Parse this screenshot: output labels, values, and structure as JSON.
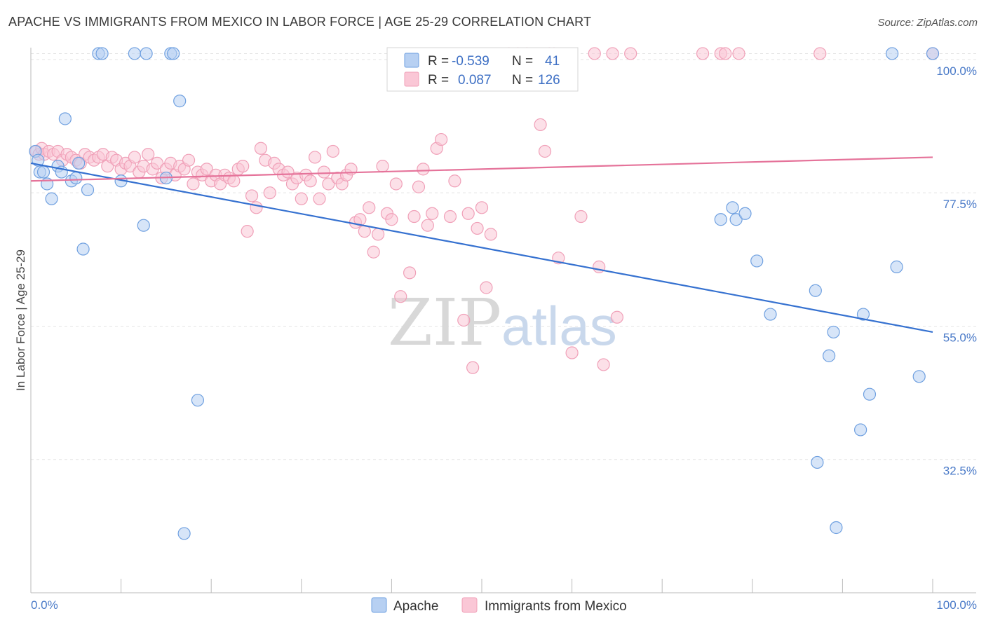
{
  "title": "APACHE VS IMMIGRANTS FROM MEXICO IN LABOR FORCE | AGE 25-29 CORRELATION CHART",
  "source": "Source: ZipAtlas.com",
  "watermark": {
    "zip": "ZIP",
    "atlas": "atlas"
  },
  "legend": {
    "r_label": "R =",
    "n_label": "N =",
    "rows": [
      {
        "r": "-0.539",
        "n": "41",
        "color": "#a8c8f0"
      },
      {
        "r": "0.087",
        "n": "126",
        "color": "#f7b8cc"
      }
    ]
  },
  "chart_data": {
    "type": "scatter",
    "ylabel": "In Labor Force | Age 25-29",
    "xlabel": "",
    "x_tick_labels": [
      "0.0%",
      "100.0%"
    ],
    "y_tick_labels": [
      "100.0%",
      "77.5%",
      "55.0%",
      "32.5%"
    ],
    "y_ticks": [
      100.0,
      77.5,
      55.0,
      32.5
    ],
    "xlim": [
      0,
      100
    ],
    "ylim": [
      10,
      102
    ],
    "grid": true,
    "legend_placement": "top-center",
    "series": [
      {
        "name": "Apache",
        "color": "#6fa0e0",
        "fill": "#b7d0f2",
        "line_color": "#3571d0",
        "trend": {
          "x0": 0,
          "y0": 82.5,
          "x1": 100,
          "y1": 54.0
        },
        "points": [
          [
            0.5,
            84.5
          ],
          [
            0.8,
            83.0
          ],
          [
            1.0,
            81.0
          ],
          [
            1.4,
            81.0
          ],
          [
            1.8,
            79.0
          ],
          [
            2.3,
            76.5
          ],
          [
            3.0,
            82.0
          ],
          [
            3.4,
            81.0
          ],
          [
            3.8,
            90.0
          ],
          [
            4.5,
            79.5
          ],
          [
            5.0,
            80.0
          ],
          [
            5.3,
            82.5
          ],
          [
            5.8,
            68.0
          ],
          [
            6.3,
            78.0
          ],
          [
            7.5,
            101.0
          ],
          [
            7.9,
            101.0
          ],
          [
            10.0,
            79.5
          ],
          [
            11.5,
            101.0
          ],
          [
            12.5,
            72.0
          ],
          [
            12.8,
            101.0
          ],
          [
            15.0,
            80.0
          ],
          [
            15.5,
            101.0
          ],
          [
            15.8,
            101.0
          ],
          [
            16.5,
            93.0
          ],
          [
            17.0,
            20.0
          ],
          [
            18.5,
            42.5
          ],
          [
            76.5,
            73.0
          ],
          [
            77.8,
            75.0
          ],
          [
            78.2,
            73.0
          ],
          [
            79.2,
            74.0
          ],
          [
            80.5,
            66.0
          ],
          [
            82.0,
            57.0
          ],
          [
            87.0,
            61.0
          ],
          [
            87.2,
            32.0
          ],
          [
            88.5,
            50.0
          ],
          [
            89.0,
            54.0
          ],
          [
            89.3,
            21.0
          ],
          [
            92.0,
            37.5
          ],
          [
            92.3,
            57.0
          ],
          [
            93.0,
            43.5
          ],
          [
            95.5,
            101.0
          ],
          [
            96.0,
            65.0
          ],
          [
            98.5,
            46.5
          ],
          [
            100.0,
            101.0
          ]
        ]
      },
      {
        "name": "Immigrants from Mexico",
        "color": "#f0a0b8",
        "fill": "#fac7d6",
        "line_color": "#e5739a",
        "trend": {
          "x0": 0,
          "y0": 79.5,
          "x1": 100,
          "y1": 83.5
        },
        "points": [
          [
            0.6,
            84.5
          ],
          [
            0.9,
            84.0
          ],
          [
            1.2,
            85.0
          ],
          [
            1.5,
            84.0
          ],
          [
            2.0,
            84.5
          ],
          [
            2.5,
            84.0
          ],
          [
            3.0,
            84.5
          ],
          [
            3.5,
            83.0
          ],
          [
            4.0,
            84.0
          ],
          [
            4.5,
            83.5
          ],
          [
            5.0,
            83.0
          ],
          [
            5.5,
            82.5
          ],
          [
            6.0,
            84.0
          ],
          [
            6.5,
            83.5
          ],
          [
            7.0,
            83.0
          ],
          [
            7.5,
            83.5
          ],
          [
            8.0,
            84.0
          ],
          [
            8.5,
            82.0
          ],
          [
            9.0,
            83.5
          ],
          [
            9.5,
            83.0
          ],
          [
            10.0,
            81.5
          ],
          [
            10.5,
            82.5
          ],
          [
            11.0,
            82.0
          ],
          [
            11.5,
            83.5
          ],
          [
            12.0,
            81.0
          ],
          [
            12.5,
            82.0
          ],
          [
            13.0,
            84.0
          ],
          [
            13.5,
            81.5
          ],
          [
            14.0,
            82.5
          ],
          [
            14.5,
            80.0
          ],
          [
            15.0,
            81.5
          ],
          [
            15.5,
            82.5
          ],
          [
            16.0,
            80.5
          ],
          [
            16.5,
            82.0
          ],
          [
            17.0,
            81.5
          ],
          [
            17.5,
            83.0
          ],
          [
            18.0,
            79.0
          ],
          [
            18.5,
            81.0
          ],
          [
            19.0,
            80.5
          ],
          [
            19.5,
            81.5
          ],
          [
            20.0,
            79.5
          ],
          [
            20.5,
            80.5
          ],
          [
            21.0,
            79.0
          ],
          [
            21.5,
            80.5
          ],
          [
            22.0,
            80.0
          ],
          [
            22.5,
            79.5
          ],
          [
            23.0,
            81.5
          ],
          [
            23.5,
            82.0
          ],
          [
            24.0,
            71.0
          ],
          [
            24.5,
            77.0
          ],
          [
            25.0,
            75.0
          ],
          [
            25.5,
            85.0
          ],
          [
            26.0,
            83.0
          ],
          [
            26.5,
            77.5
          ],
          [
            27.0,
            82.5
          ],
          [
            27.5,
            81.5
          ],
          [
            28.0,
            80.5
          ],
          [
            28.5,
            81.0
          ],
          [
            29.0,
            79.0
          ],
          [
            29.5,
            80.0
          ],
          [
            30.0,
            76.5
          ],
          [
            30.5,
            80.5
          ],
          [
            31.0,
            79.5
          ],
          [
            31.5,
            83.5
          ],
          [
            32.0,
            76.5
          ],
          [
            32.5,
            81.0
          ],
          [
            33.0,
            79.0
          ],
          [
            33.5,
            84.5
          ],
          [
            34.0,
            80.0
          ],
          [
            34.5,
            79.0
          ],
          [
            35.0,
            80.5
          ],
          [
            35.5,
            81.5
          ],
          [
            36.0,
            72.5
          ],
          [
            36.5,
            73.0
          ],
          [
            37.0,
            71.0
          ],
          [
            37.5,
            75.0
          ],
          [
            38.0,
            67.5
          ],
          [
            38.5,
            70.5
          ],
          [
            39.0,
            82.0
          ],
          [
            39.5,
            74.0
          ],
          [
            40.0,
            73.0
          ],
          [
            40.5,
            79.0
          ],
          [
            41.0,
            60.0
          ],
          [
            42.0,
            64.0
          ],
          [
            42.5,
            73.5
          ],
          [
            43.0,
            78.5
          ],
          [
            43.5,
            81.5
          ],
          [
            44.0,
            72.0
          ],
          [
            44.5,
            74.0
          ],
          [
            45.0,
            85.0
          ],
          [
            45.5,
            86.5
          ],
          [
            46.5,
            73.5
          ],
          [
            47.0,
            79.5
          ],
          [
            48.0,
            56.0
          ],
          [
            48.5,
            74.0
          ],
          [
            49.0,
            48.0
          ],
          [
            49.5,
            71.5
          ],
          [
            50.0,
            75.0
          ],
          [
            50.5,
            61.5
          ],
          [
            51.0,
            70.5
          ],
          [
            53.0,
            101.0
          ],
          [
            54.0,
            101.0
          ],
          [
            55.0,
            101.0
          ],
          [
            56.5,
            89.0
          ],
          [
            57.0,
            84.5
          ],
          [
            57.5,
            101.0
          ],
          [
            58.0,
            101.0
          ],
          [
            58.5,
            66.5
          ],
          [
            60.0,
            50.5
          ],
          [
            61.0,
            73.5
          ],
          [
            62.5,
            101.0
          ],
          [
            63.0,
            65.0
          ],
          [
            63.5,
            48.5
          ],
          [
            64.5,
            101.0
          ],
          [
            65.0,
            56.5
          ],
          [
            66.5,
            101.0
          ],
          [
            74.5,
            101.0
          ],
          [
            76.5,
            101.0
          ],
          [
            77.0,
            101.0
          ],
          [
            78.5,
            101.0
          ],
          [
            87.5,
            101.0
          ],
          [
            100.0,
            101.0
          ]
        ]
      }
    ]
  }
}
